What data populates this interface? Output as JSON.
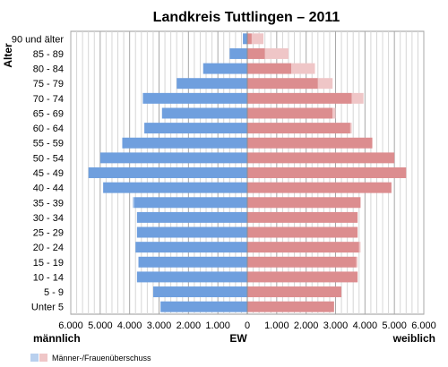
{
  "chart_data": {
    "type": "bar",
    "subtype": "population-pyramid",
    "title": "Landkreis Tuttlingen – 2011",
    "ylabel": "Alter",
    "xlabel_left": "männlich",
    "xlabel_center": "EW",
    "xlabel_right": "weiblich",
    "xlim": [
      -6000,
      6000
    ],
    "x_ticks": [
      -6000,
      -5000,
      -4000,
      -3000,
      -2000,
      -1000,
      0,
      1000,
      2000,
      3000,
      4000,
      5000,
      6000
    ],
    "x_tick_labels": [
      "6.000",
      "5.000",
      "4.000",
      "3.000",
      "2.000",
      "1.000",
      "0",
      "1.000",
      "2.000",
      "3.000",
      "4.000",
      "5.000",
      "6.000"
    ],
    "grid": true,
    "categories": [
      "90 und älter",
      "85 - 89",
      "80 - 84",
      "75 - 79",
      "70 - 74",
      "65 - 69",
      "60 - 64",
      "55 - 59",
      "50 - 54",
      "45 - 49",
      "40 - 44",
      "35 - 39",
      "30 - 34",
      "25 - 29",
      "20 - 24",
      "15 - 19",
      "10 - 14",
      "5 - 9",
      "Unter 5"
    ],
    "series": [
      {
        "name": "männlich",
        "color": "#6f9fde",
        "surplus_color": "#b9d0ee",
        "values": [
          150,
          600,
          1500,
          2400,
          3550,
          2900,
          3500,
          4250,
          5000,
          5400,
          4900,
          3900,
          3750,
          3750,
          3800,
          3700,
          3750,
          3200,
          2950
        ]
      },
      {
        "name": "weiblich",
        "color": "#dc8d8f",
        "surplus_color": "#efc6c7",
        "values": [
          550,
          1400,
          2300,
          2900,
          3950,
          3000,
          3550,
          4250,
          5000,
          5400,
          4900,
          3850,
          3750,
          3750,
          3850,
          3750,
          3750,
          3200,
          2950
        ]
      }
    ],
    "legend": {
      "label": "Männer-/Frauenüberschuss",
      "placement": "bottom-left"
    }
  }
}
